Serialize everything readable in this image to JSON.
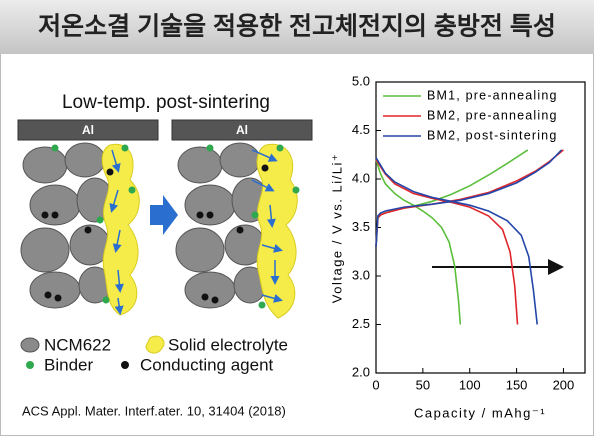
{
  "header": {
    "title": "저온소결 기술을 적용한 전고체전지의 충방전 특성"
  },
  "diagram": {
    "heading": "Low-temp. post-sintering",
    "collector_left": "Al",
    "collector_right": "Al",
    "legend": [
      "NCM622",
      "Solid electrolyte",
      "Binder",
      "Conducting agent"
    ]
  },
  "citation": "ACS Appl. Mater. Interf.ater. 10, 31404 (2018)",
  "chart_data": {
    "type": "line",
    "xlabel": "Capacity / mAhg⁻¹",
    "ylabel": "Voltage / V vs. Li/Li⁺",
    "xlim": [
      0,
      223
    ],
    "ylim": [
      2,
      5
    ],
    "xticks": [
      0,
      50,
      100,
      150,
      200
    ],
    "yticks": [
      {
        "value": 2,
        "label": "2.0"
      },
      2.5,
      {
        "value": 3,
        "label": "3.0"
      },
      3.5,
      {
        "value": 4,
        "label": "4.0"
      },
      4.5,
      {
        "value": 5,
        "label": "5.0"
      }
    ],
    "legend": "upper right",
    "series": [
      {
        "name": "BM1, pre-annealing",
        "color": "#5cbf3c",
        "charge": {
          "x": [
            0,
            2,
            5,
            10,
            20,
            40,
            60,
            80,
            100,
            120,
            140,
            162
          ],
          "values": [
            3.3,
            3.6,
            3.63,
            3.65,
            3.68,
            3.72,
            3.77,
            3.84,
            3.93,
            4.04,
            4.16,
            4.3
          ]
        },
        "discharge": {
          "x": [
            0,
            5,
            10,
            20,
            30,
            40,
            50,
            60,
            70,
            78,
            84,
            88,
            90
          ],
          "values": [
            4.2,
            4.05,
            3.95,
            3.85,
            3.78,
            3.73,
            3.67,
            3.6,
            3.5,
            3.35,
            3.1,
            2.75,
            2.5
          ]
        }
      },
      {
        "name": "BM2, pre-annealing",
        "color": "#e0262b",
        "charge": {
          "x": [
            0,
            2,
            5,
            10,
            30,
            60,
            90,
            120,
            150,
            170,
            185,
            200
          ],
          "values": [
            3.3,
            3.6,
            3.63,
            3.65,
            3.7,
            3.74,
            3.79,
            3.86,
            3.98,
            4.08,
            4.18,
            4.3
          ]
        },
        "discharge": {
          "x": [
            0,
            10,
            20,
            40,
            60,
            80,
            100,
            120,
            135,
            143,
            148,
            151
          ],
          "values": [
            4.2,
            4.05,
            3.95,
            3.85,
            3.8,
            3.76,
            3.71,
            3.62,
            3.48,
            3.25,
            2.9,
            2.5
          ]
        }
      },
      {
        "name": "BM2, post-sintering",
        "color": "#2446a8",
        "charge": {
          "x": [
            0,
            2,
            5,
            10,
            30,
            60,
            90,
            120,
            150,
            170,
            185,
            198
          ],
          "values": [
            3.3,
            3.62,
            3.65,
            3.67,
            3.71,
            3.74,
            3.78,
            3.85,
            3.96,
            4.07,
            4.17,
            4.3
          ]
        },
        "discharge": {
          "x": [
            0,
            10,
            20,
            40,
            60,
            80,
            100,
            120,
            140,
            155,
            163,
            168,
            172
          ],
          "values": [
            4.22,
            4.06,
            3.97,
            3.87,
            3.81,
            3.77,
            3.73,
            3.67,
            3.57,
            3.42,
            3.2,
            2.85,
            2.5
          ]
        }
      }
    ]
  }
}
